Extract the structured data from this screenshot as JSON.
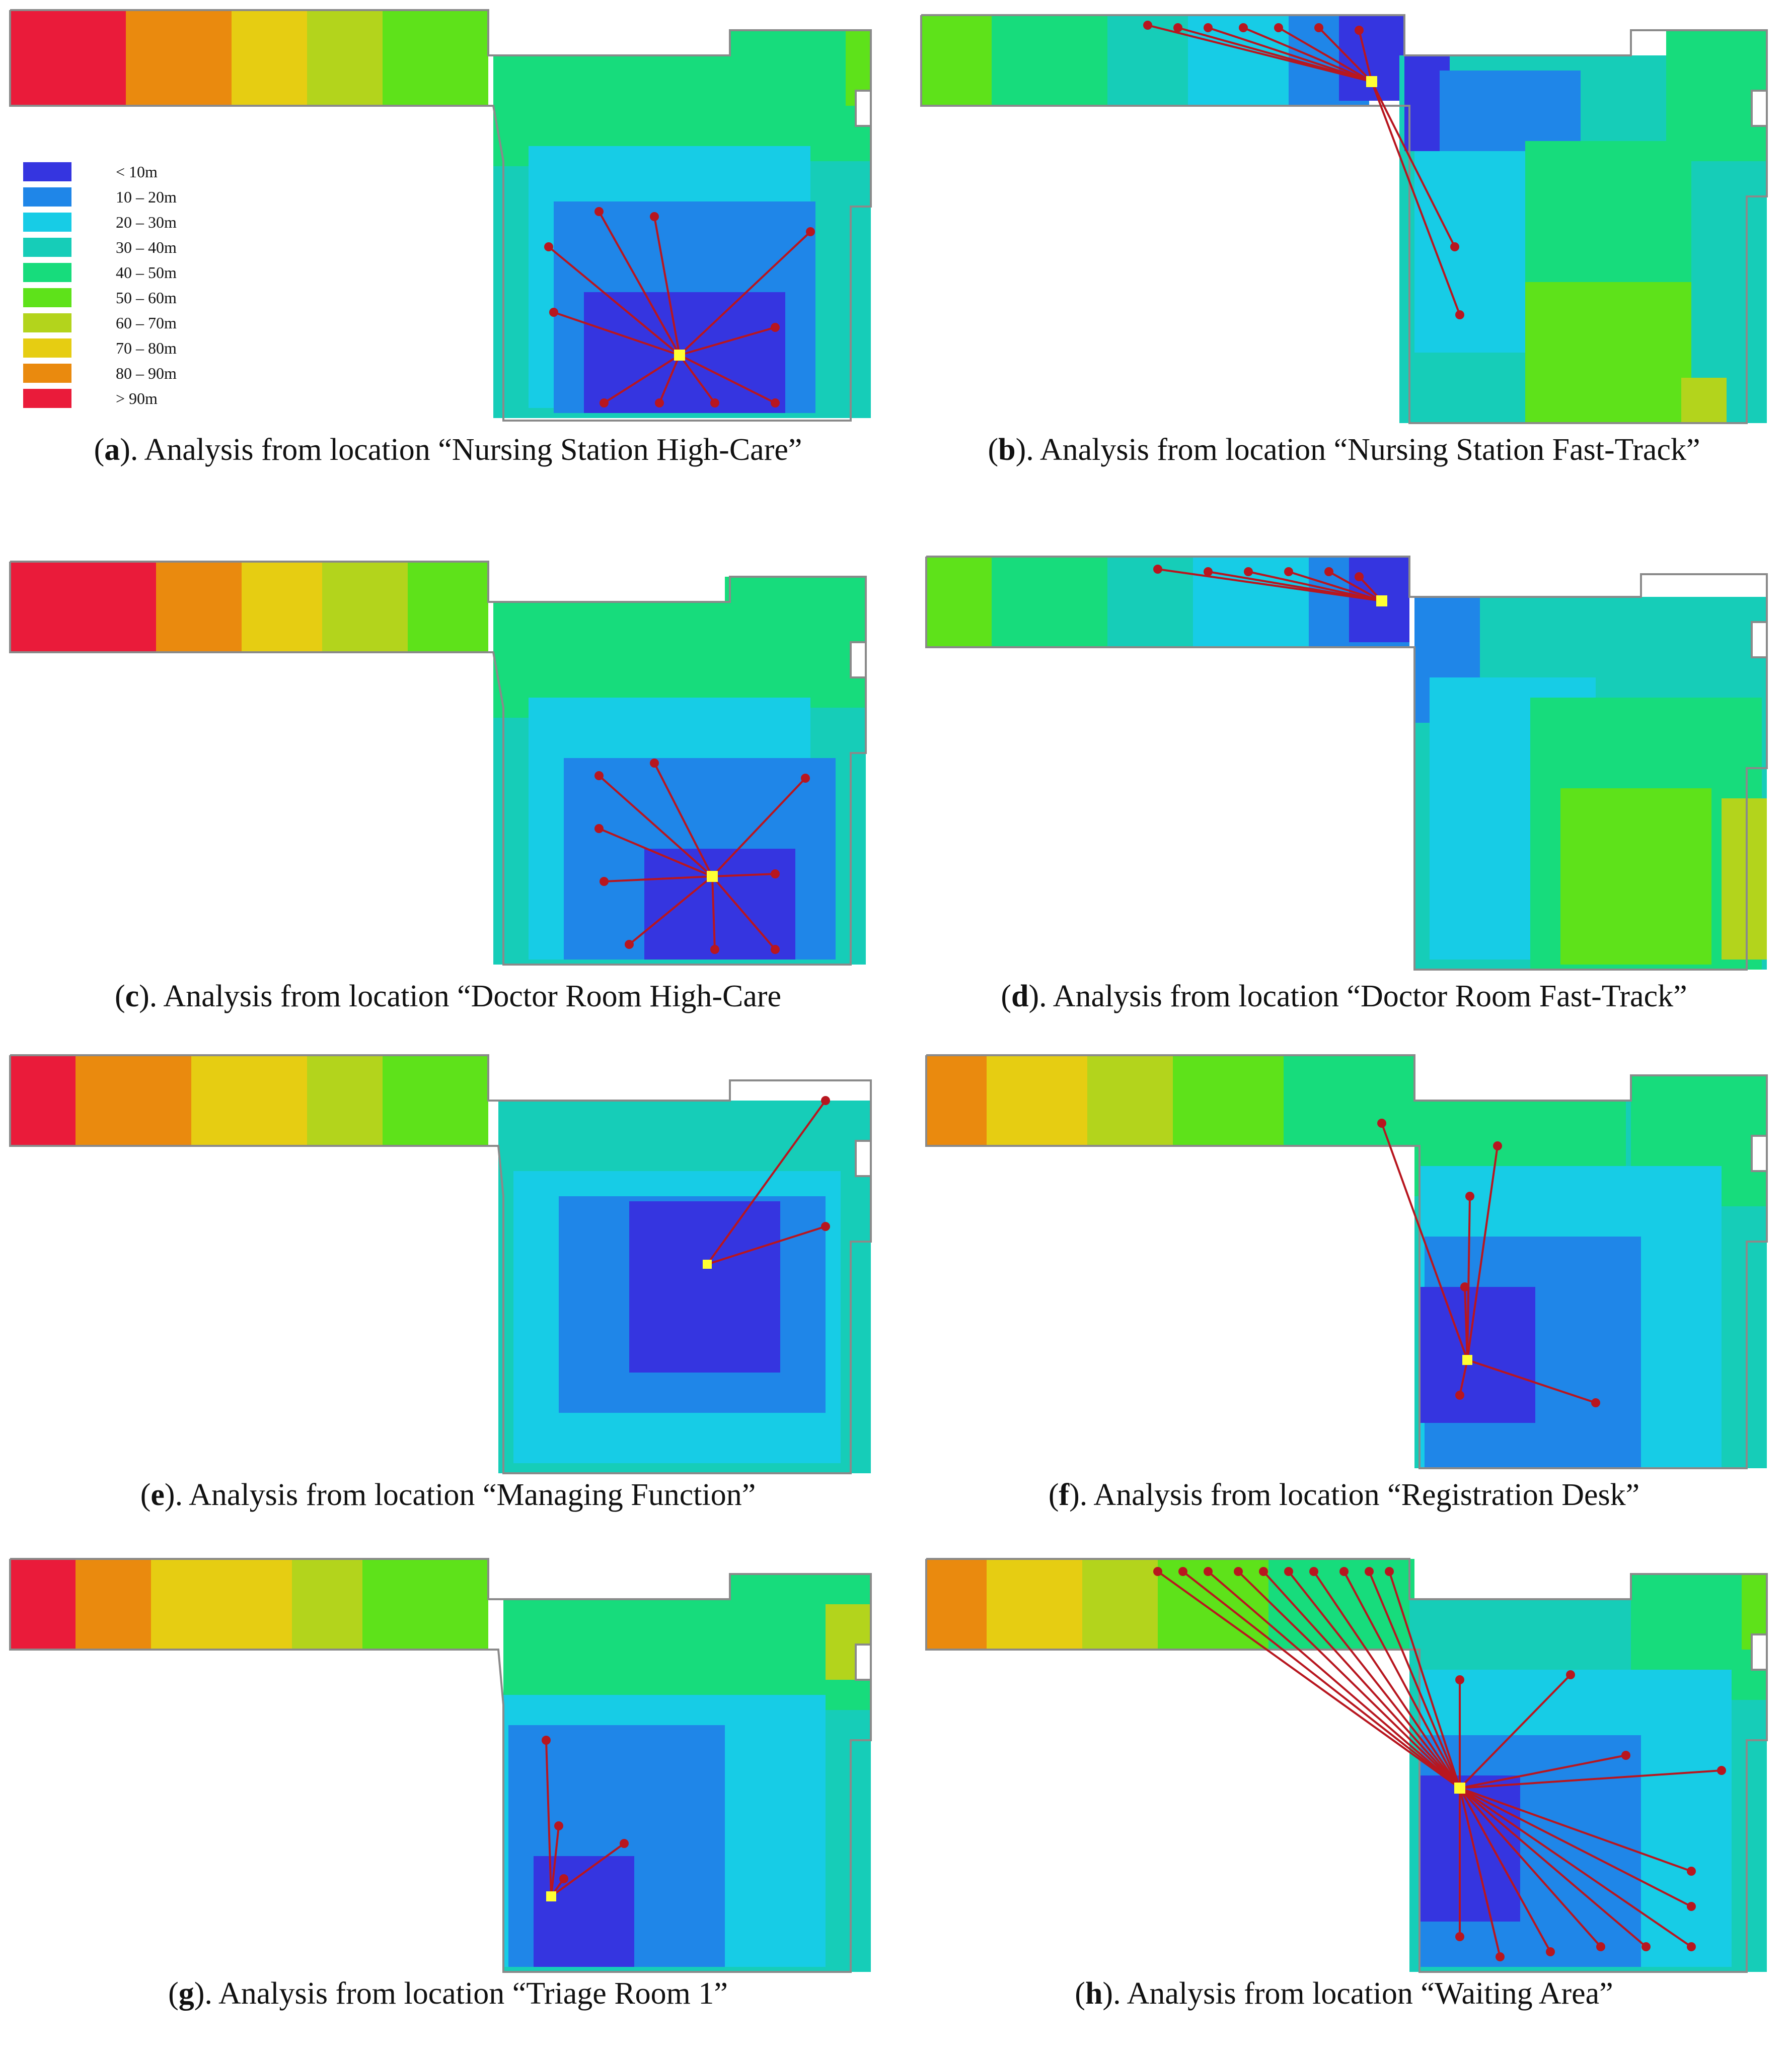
{
  "figure": {
    "legend": {
      "items": [
        {
          "label": "< 10m",
          "color": "#3535e0"
        },
        {
          "label": "10 – 20m",
          "color": "#1f86e8"
        },
        {
          "label": "20 – 30m",
          "color": "#17cce6"
        },
        {
          "label": "30 – 40m",
          "color": "#16cdb8"
        },
        {
          "label": "40 – 50m",
          "color": "#17dc7c"
        },
        {
          "label": "50 – 60m",
          "color": "#5ee21a"
        },
        {
          "label": "60 – 70m",
          "color": "#b3d41c"
        },
        {
          "label": "70 – 80m",
          "color": "#e6cd12"
        },
        {
          "label": "80 – 90m",
          "color": "#ea8a0e"
        },
        {
          "label": "> 90m",
          "color": "#ea1b3a"
        }
      ]
    },
    "colors": {
      "origin_marker": "#ffff33",
      "sight_line": "#b8161f",
      "wall": "#8a8a8a"
    },
    "panels": [
      {
        "letter": "a",
        "caption": "). Analysis from location “Nursing Station High-Care”"
      },
      {
        "letter": "b",
        "caption": "). Analysis from location “Nursing Station Fast-Track”"
      },
      {
        "letter": "c",
        "caption": "). Analysis from location “Doctor Room High-Care"
      },
      {
        "letter": "d",
        "caption": "). Analysis from location “Doctor Room Fast-Track”"
      },
      {
        "letter": "e",
        "caption": "). Analysis from location “Managing Function”"
      },
      {
        "letter": "f",
        "caption": "). Analysis from location “Registration Desk”"
      },
      {
        "letter": "g",
        "caption": "). Analysis from location “Triage Room 1”"
      },
      {
        "letter": "h",
        "caption": "). Analysis from location “Waiting Area”"
      }
    ]
  }
}
